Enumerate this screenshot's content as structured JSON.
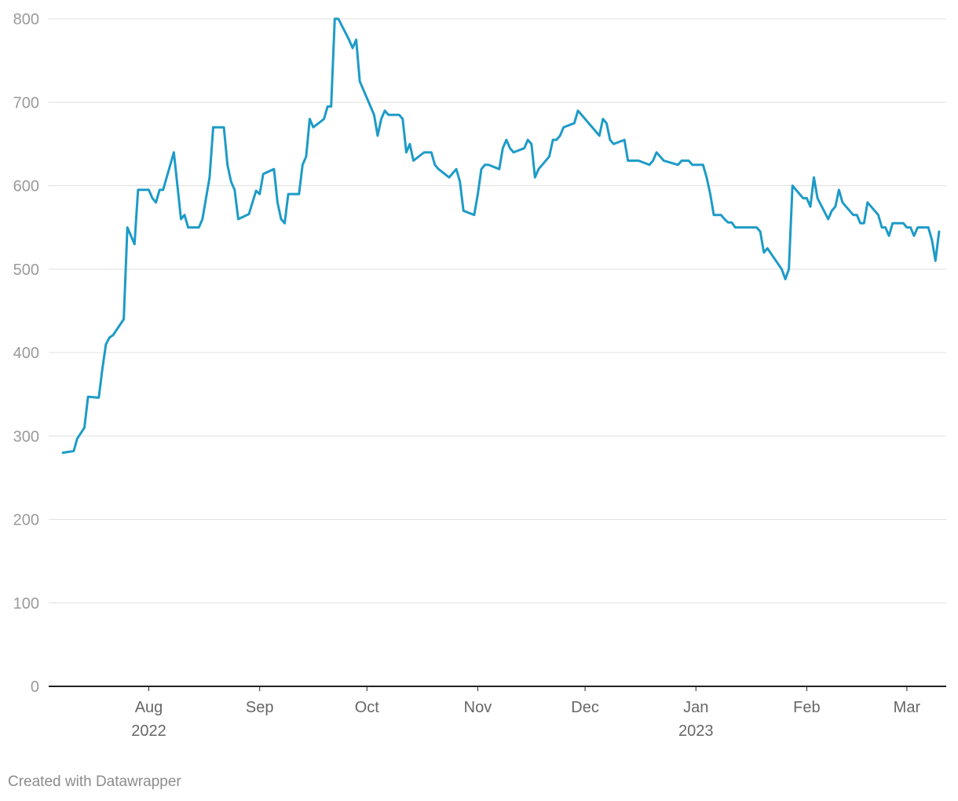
{
  "chart_data": {
    "type": "line",
    "title": "",
    "xlabel": "",
    "ylabel": "",
    "ylim": [
      0,
      800
    ],
    "y_ticks": [
      0,
      100,
      200,
      300,
      400,
      500,
      600,
      700,
      800
    ],
    "grid": true,
    "x_ticks": [
      {
        "date": "2022-08-01",
        "label": "Aug",
        "sublabel": "2022"
      },
      {
        "date": "2022-09-01",
        "label": "Sep",
        "sublabel": ""
      },
      {
        "date": "2022-10-01",
        "label": "Oct",
        "sublabel": ""
      },
      {
        "date": "2022-11-01",
        "label": "Nov",
        "sublabel": ""
      },
      {
        "date": "2022-12-01",
        "label": "Dec",
        "sublabel": ""
      },
      {
        "date": "2023-01-01",
        "label": "Jan",
        "sublabel": "2023"
      },
      {
        "date": "2023-02-01",
        "label": "Feb",
        "sublabel": ""
      },
      {
        "date": "2023-03-01",
        "label": "Mar",
        "sublabel": ""
      }
    ],
    "xlim": [
      "2022-07-04",
      "2023-03-12"
    ],
    "series": [
      {
        "color": "#1d9bc7",
        "points": [
          [
            "2022-07-08",
            280
          ],
          [
            "2022-07-11",
            282
          ],
          [
            "2022-07-12",
            297
          ],
          [
            "2022-07-14",
            310
          ],
          [
            "2022-07-15",
            347
          ],
          [
            "2022-07-18",
            346
          ],
          [
            "2022-07-19",
            380
          ],
          [
            "2022-07-20",
            410
          ],
          [
            "2022-07-21",
            418
          ],
          [
            "2022-07-22",
            421
          ],
          [
            "2022-07-25",
            440
          ],
          [
            "2022-07-26",
            550
          ],
          [
            "2022-07-28",
            530
          ],
          [
            "2022-07-29",
            595
          ],
          [
            "2022-08-01",
            595
          ],
          [
            "2022-08-02",
            585
          ],
          [
            "2022-08-03",
            580
          ],
          [
            "2022-08-04",
            595
          ],
          [
            "2022-08-05",
            595
          ],
          [
            "2022-08-08",
            640
          ],
          [
            "2022-08-10",
            560
          ],
          [
            "2022-08-11",
            565
          ],
          [
            "2022-08-12",
            550
          ],
          [
            "2022-08-15",
            550
          ],
          [
            "2022-08-16",
            560
          ],
          [
            "2022-08-18",
            610
          ],
          [
            "2022-08-19",
            670
          ],
          [
            "2022-08-22",
            670
          ],
          [
            "2022-08-23",
            625
          ],
          [
            "2022-08-24",
            605
          ],
          [
            "2022-08-25",
            595
          ],
          [
            "2022-08-26",
            560
          ],
          [
            "2022-08-29",
            566
          ],
          [
            "2022-08-31",
            594
          ],
          [
            "2022-09-01",
            590
          ],
          [
            "2022-09-02",
            614
          ],
          [
            "2022-09-05",
            620
          ],
          [
            "2022-09-06",
            580
          ],
          [
            "2022-09-07",
            560
          ],
          [
            "2022-09-08",
            555
          ],
          [
            "2022-09-09",
            590
          ],
          [
            "2022-09-12",
            590
          ],
          [
            "2022-09-13",
            625
          ],
          [
            "2022-09-14",
            635
          ],
          [
            "2022-09-15",
            680
          ],
          [
            "2022-09-16",
            670
          ],
          [
            "2022-09-19",
            680
          ],
          [
            "2022-09-20",
            695
          ],
          [
            "2022-09-21",
            695
          ],
          [
            "2022-09-22",
            800
          ],
          [
            "2022-09-23",
            800
          ],
          [
            "2022-09-26",
            775
          ],
          [
            "2022-09-27",
            765
          ],
          [
            "2022-09-28",
            775
          ],
          [
            "2022-09-29",
            725
          ],
          [
            "2022-10-03",
            685
          ],
          [
            "2022-10-04",
            660
          ],
          [
            "2022-10-05",
            680
          ],
          [
            "2022-10-06",
            690
          ],
          [
            "2022-10-07",
            685
          ],
          [
            "2022-10-10",
            685
          ],
          [
            "2022-10-11",
            680
          ],
          [
            "2022-10-12",
            640
          ],
          [
            "2022-10-13",
            650
          ],
          [
            "2022-10-14",
            630
          ],
          [
            "2022-10-17",
            640
          ],
          [
            "2022-10-19",
            640
          ],
          [
            "2022-10-20",
            625
          ],
          [
            "2022-10-21",
            620
          ],
          [
            "2022-10-24",
            610
          ],
          [
            "2022-10-26",
            620
          ],
          [
            "2022-10-27",
            605
          ],
          [
            "2022-10-28",
            570
          ],
          [
            "2022-10-31",
            565
          ],
          [
            "2022-11-01",
            590
          ],
          [
            "2022-11-02",
            620
          ],
          [
            "2022-11-03",
            625
          ],
          [
            "2022-11-04",
            625
          ],
          [
            "2022-11-07",
            620
          ],
          [
            "2022-11-08",
            645
          ],
          [
            "2022-11-09",
            655
          ],
          [
            "2022-11-10",
            645
          ],
          [
            "2022-11-11",
            640
          ],
          [
            "2022-11-14",
            645
          ],
          [
            "2022-11-15",
            655
          ],
          [
            "2022-11-16",
            650
          ],
          [
            "2022-11-17",
            610
          ],
          [
            "2022-11-18",
            620
          ],
          [
            "2022-11-21",
            635
          ],
          [
            "2022-11-22",
            655
          ],
          [
            "2022-11-23",
            655
          ],
          [
            "2022-11-24",
            660
          ],
          [
            "2022-11-25",
            670
          ],
          [
            "2022-11-28",
            675
          ],
          [
            "2022-11-29",
            690
          ],
          [
            "2022-12-05",
            660
          ],
          [
            "2022-12-06",
            680
          ],
          [
            "2022-12-07",
            675
          ],
          [
            "2022-12-08",
            655
          ],
          [
            "2022-12-09",
            650
          ],
          [
            "2022-12-12",
            655
          ],
          [
            "2022-12-13",
            630
          ],
          [
            "2022-12-16",
            630
          ],
          [
            "2022-12-19",
            625
          ],
          [
            "2022-12-20",
            630
          ],
          [
            "2022-12-21",
            640
          ],
          [
            "2022-12-22",
            635
          ],
          [
            "2022-12-23",
            630
          ],
          [
            "2022-12-27",
            625
          ],
          [
            "2022-12-28",
            630
          ],
          [
            "2022-12-30",
            630
          ],
          [
            "2022-12-31",
            625
          ],
          [
            "2023-01-03",
            625
          ],
          [
            "2023-01-04",
            610
          ],
          [
            "2023-01-05",
            590
          ],
          [
            "2023-01-06",
            565
          ],
          [
            "2023-01-08",
            565
          ],
          [
            "2023-01-09",
            560
          ],
          [
            "2023-01-10",
            556
          ],
          [
            "2023-01-11",
            556
          ],
          [
            "2023-01-12",
            550
          ],
          [
            "2023-01-18",
            550
          ],
          [
            "2023-01-19",
            545
          ],
          [
            "2023-01-20",
            520
          ],
          [
            "2023-01-21",
            525
          ],
          [
            "2023-01-25",
            500
          ],
          [
            "2023-01-26",
            488
          ],
          [
            "2023-01-27",
            500
          ],
          [
            "2023-01-28",
            600
          ],
          [
            "2023-01-31",
            585
          ],
          [
            "2023-02-01",
            585
          ],
          [
            "2023-02-02",
            575
          ],
          [
            "2023-02-03",
            610
          ],
          [
            "2023-02-04",
            585
          ],
          [
            "2023-02-07",
            560
          ],
          [
            "2023-02-08",
            570
          ],
          [
            "2023-02-09",
            575
          ],
          [
            "2023-02-10",
            595
          ],
          [
            "2023-02-11",
            580
          ],
          [
            "2023-02-14",
            565
          ],
          [
            "2023-02-15",
            565
          ],
          [
            "2023-02-16",
            555
          ],
          [
            "2023-02-17",
            555
          ],
          [
            "2023-02-18",
            580
          ],
          [
            "2023-02-21",
            565
          ],
          [
            "2023-02-22",
            550
          ],
          [
            "2023-02-23",
            550
          ],
          [
            "2023-02-24",
            540
          ],
          [
            "2023-02-25",
            555
          ],
          [
            "2023-02-28",
            555
          ],
          [
            "2023-03-01",
            550
          ],
          [
            "2023-03-02",
            550
          ],
          [
            "2023-03-03",
            540
          ],
          [
            "2023-03-04",
            550
          ],
          [
            "2023-03-07",
            550
          ],
          [
            "2023-03-08",
            535
          ],
          [
            "2023-03-09",
            510
          ],
          [
            "2023-03-10",
            545
          ]
        ]
      }
    ]
  },
  "footer": {
    "credit": "Created with Datawrapper"
  }
}
